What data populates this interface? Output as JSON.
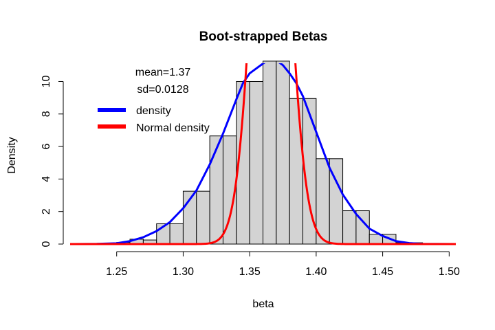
{
  "chart_data": {
    "type": "histogram",
    "title": "Boot-strapped Betas",
    "xlabel": "beta",
    "ylabel": "Density",
    "xlim": [
      1.215,
      1.505
    ],
    "ylim": [
      0,
      11.5
    ],
    "x_ticks": [
      "1.25",
      "1.30",
      "1.35",
      "1.40",
      "1.45",
      "1.50"
    ],
    "x_tick_values": [
      1.25,
      1.3,
      1.35,
      1.4,
      1.45,
      1.5
    ],
    "y_ticks": [
      "0",
      "2",
      "4",
      "6",
      "8",
      "10"
    ],
    "y_tick_values": [
      0,
      2,
      4,
      6,
      8,
      10
    ],
    "grid": false,
    "bar_color": "#d3d3d3",
    "bins": [
      {
        "start": 1.23,
        "end": 1.24,
        "density": 0.02
      },
      {
        "start": 1.24,
        "end": 1.25,
        "density": 0.06
      },
      {
        "start": 1.25,
        "end": 1.26,
        "density": 0.1
      },
      {
        "start": 1.26,
        "end": 1.27,
        "density": 0.3
      },
      {
        "start": 1.27,
        "end": 1.28,
        "density": 0.25
      },
      {
        "start": 1.28,
        "end": 1.29,
        "density": 1.25
      },
      {
        "start": 1.29,
        "end": 1.3,
        "density": 1.25
      },
      {
        "start": 1.3,
        "end": 1.31,
        "density": 3.25
      },
      {
        "start": 1.31,
        "end": 1.32,
        "density": 3.25
      },
      {
        "start": 1.32,
        "end": 1.33,
        "density": 6.65
      },
      {
        "start": 1.33,
        "end": 1.34,
        "density": 6.65
      },
      {
        "start": 1.34,
        "end": 1.35,
        "density": 10.0
      },
      {
        "start": 1.35,
        "end": 1.36,
        "density": 10.0
      },
      {
        "start": 1.36,
        "end": 1.37,
        "density": 11.25
      },
      {
        "start": 1.37,
        "end": 1.38,
        "density": 11.25
      },
      {
        "start": 1.38,
        "end": 1.39,
        "density": 8.95
      },
      {
        "start": 1.39,
        "end": 1.4,
        "density": 8.95
      },
      {
        "start": 1.4,
        "end": 1.41,
        "density": 5.25
      },
      {
        "start": 1.41,
        "end": 1.42,
        "density": 5.25
      },
      {
        "start": 1.42,
        "end": 1.43,
        "density": 2.05
      },
      {
        "start": 1.43,
        "end": 1.44,
        "density": 2.05
      },
      {
        "start": 1.44,
        "end": 1.45,
        "density": 0.6
      },
      {
        "start": 1.45,
        "end": 1.46,
        "density": 0.6
      },
      {
        "start": 1.46,
        "end": 1.47,
        "density": 0.08
      },
      {
        "start": 1.47,
        "end": 1.48,
        "density": 0.08
      }
    ],
    "series": [
      {
        "name": "density",
        "color": "#0000ff",
        "x": [
          1.218,
          1.235,
          1.25,
          1.26,
          1.27,
          1.28,
          1.29,
          1.3,
          1.31,
          1.32,
          1.33,
          1.34,
          1.345,
          1.35,
          1.355,
          1.36,
          1.365,
          1.37,
          1.375,
          1.38,
          1.385,
          1.39,
          1.4,
          1.41,
          1.42,
          1.43,
          1.44,
          1.45,
          1.46,
          1.47,
          1.48,
          1.505
        ],
        "y": [
          0.0,
          0.01,
          0.05,
          0.18,
          0.42,
          0.8,
          1.35,
          2.2,
          3.3,
          4.9,
          6.8,
          8.9,
          9.9,
          10.5,
          10.8,
          11.1,
          11.35,
          11.3,
          11.0,
          10.5,
          9.9,
          9.1,
          6.9,
          4.7,
          3.05,
          1.85,
          0.95,
          0.5,
          0.18,
          0.06,
          0.01,
          0.0
        ]
      },
      {
        "name": "Normal density",
        "color": "#ff0000",
        "mean": 1.366,
        "sd": 0.0128
      }
    ],
    "legend": {
      "position": "top-left",
      "stats": [
        "mean=1.37",
        "sd=0.0128"
      ],
      "entries": [
        {
          "label": "density",
          "color": "#0000ff"
        },
        {
          "label": "Normal density",
          "color": "#ff0000"
        }
      ]
    }
  }
}
